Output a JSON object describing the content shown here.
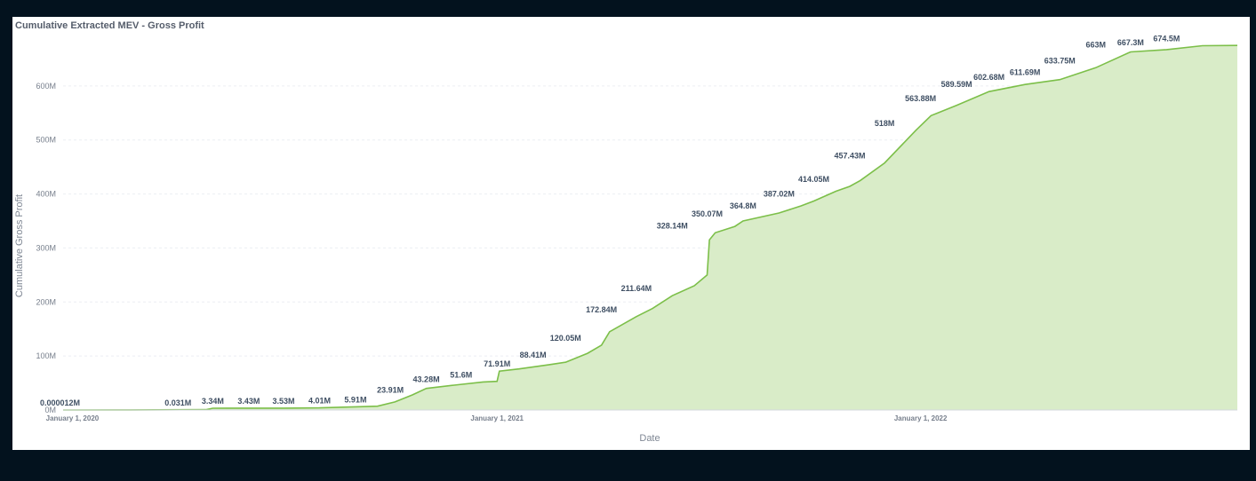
{
  "chart_data": {
    "type": "area",
    "title": "Cumulative Extracted MEV - Gross Profit",
    "xlabel": "Date",
    "ylabel": "Cumulative Gross Profit",
    "ylim": [
      0,
      700
    ],
    "yticks": [
      {
        "value": 0,
        "label": "0M"
      },
      {
        "value": 100,
        "label": "100M"
      },
      {
        "value": 200,
        "label": "200M"
      },
      {
        "value": 300,
        "label": "300M"
      },
      {
        "value": 400,
        "label": "400M"
      },
      {
        "value": 500,
        "label": "500M"
      },
      {
        "value": 600,
        "label": "600M"
      }
    ],
    "xticks": [
      {
        "date": "2020-01-01",
        "label": "January 1, 2020"
      },
      {
        "date": "2021-01-01",
        "label": "January 1, 2021"
      },
      {
        "date": "2022-01-01",
        "label": "January 1, 2022"
      }
    ],
    "xlim": [
      "2019-12-24",
      "2022-10-01"
    ],
    "grid": true,
    "colors": {
      "line": "#7cbf49",
      "fill": "#d9ecc8"
    },
    "series": [
      {
        "points": [
          [
            "2019-12-24",
            0
          ],
          [
            "2020-02-20",
            0.1
          ],
          [
            "2020-04-25",
            0.6
          ],
          [
            "2020-05-01",
            3.34
          ],
          [
            "2020-06-01",
            3.43
          ],
          [
            "2020-07-01",
            3.53
          ],
          [
            "2020-08-01",
            4.01
          ],
          [
            "2020-09-01",
            5.91
          ],
          [
            "2020-09-20",
            7
          ],
          [
            "2020-10-05",
            15
          ],
          [
            "2020-10-20",
            28
          ],
          [
            "2020-11-01",
            40
          ],
          [
            "2020-11-25",
            46
          ],
          [
            "2020-12-20",
            52
          ],
          [
            "2021-01-01",
            53
          ],
          [
            "2021-01-03",
            71.91
          ],
          [
            "2021-01-20",
            76
          ],
          [
            "2021-02-15",
            84
          ],
          [
            "2021-03-01",
            88.41
          ],
          [
            "2021-03-20",
            105
          ],
          [
            "2021-04-01",
            120.05
          ],
          [
            "2021-04-08",
            145
          ],
          [
            "2021-05-01",
            172.84
          ],
          [
            "2021-05-15",
            188
          ],
          [
            "2021-06-01",
            211.64
          ],
          [
            "2021-06-20",
            230
          ],
          [
            "2021-07-01",
            250
          ],
          [
            "2021-07-03",
            315
          ],
          [
            "2021-07-08",
            328.14
          ],
          [
            "2021-07-25",
            340
          ],
          [
            "2021-08-01",
            350.07
          ],
          [
            "2021-09-01",
            364.8
          ],
          [
            "2021-09-20",
            378
          ],
          [
            "2021-10-01",
            387.02
          ],
          [
            "2021-10-20",
            405
          ],
          [
            "2021-11-01",
            414.05
          ],
          [
            "2021-11-10",
            425
          ],
          [
            "2021-12-01",
            457.43
          ],
          [
            "2021-12-20",
            500
          ],
          [
            "2021-12-28",
            518
          ],
          [
            "2022-01-10",
            545
          ],
          [
            "2022-02-01",
            563.88
          ],
          [
            "2022-03-01",
            589.59
          ],
          [
            "2022-04-01",
            602.68
          ],
          [
            "2022-05-01",
            611.69
          ],
          [
            "2022-06-01",
            633.75
          ],
          [
            "2022-07-01",
            663
          ],
          [
            "2022-08-01",
            667.3
          ],
          [
            "2022-09-01",
            674.5
          ],
          [
            "2022-10-01",
            675
          ]
        ],
        "labels": [
          {
            "date": "2020-01-01",
            "value": 1.2e-05,
            "text": "0.000012M"
          },
          {
            "date": "2020-04-01",
            "value": 0.031,
            "text": "0.031M"
          },
          {
            "date": "2020-05-01",
            "value": 3.34,
            "text": "3.34M"
          },
          {
            "date": "2020-06-01",
            "value": 3.43,
            "text": "3.43M"
          },
          {
            "date": "2020-07-01",
            "value": 3.53,
            "text": "3.53M"
          },
          {
            "date": "2020-08-01",
            "value": 4.01,
            "text": "4.01M"
          },
          {
            "date": "2020-09-01",
            "value": 5.91,
            "text": "5.91M"
          },
          {
            "date": "2020-10-01",
            "value": 23.91,
            "text": "23.91M"
          },
          {
            "date": "2020-11-01",
            "value": 43.28,
            "text": "43.28M"
          },
          {
            "date": "2020-12-01",
            "value": 51.6,
            "text": "51.6M"
          },
          {
            "date": "2021-01-01",
            "value": 71.91,
            "text": "71.91M"
          },
          {
            "date": "2021-02-01",
            "value": 88.41,
            "text": "88.41M"
          },
          {
            "date": "2021-03-01",
            "value": 120.05,
            "text": "120.05M"
          },
          {
            "date": "2021-04-01",
            "value": 172.84,
            "text": "172.84M"
          },
          {
            "date": "2021-05-01",
            "value": 211.64,
            "text": "211.64M"
          },
          {
            "date": "2021-06-01",
            "value": 328.14,
            "text": "328.14M"
          },
          {
            "date": "2021-07-01",
            "value": 350.07,
            "text": "350.07M"
          },
          {
            "date": "2021-08-01",
            "value": 364.8,
            "text": "364.8M"
          },
          {
            "date": "2021-09-01",
            "value": 387.02,
            "text": "387.02M"
          },
          {
            "date": "2021-10-01",
            "value": 414.05,
            "text": "414.05M"
          },
          {
            "date": "2021-11-01",
            "value": 457.43,
            "text": "457.43M"
          },
          {
            "date": "2021-12-01",
            "value": 518,
            "text": "518M"
          },
          {
            "date": "2022-01-01",
            "value": 563.88,
            "text": "563.88M"
          },
          {
            "date": "2022-02-01",
            "value": 589.59,
            "text": "589.59M"
          },
          {
            "date": "2022-03-01",
            "value": 602.68,
            "text": "602.68M"
          },
          {
            "date": "2022-04-01",
            "value": 611.69,
            "text": "611.69M"
          },
          {
            "date": "2022-05-01",
            "value": 633.75,
            "text": "633.75M"
          },
          {
            "date": "2022-06-01",
            "value": 663,
            "text": "663M"
          },
          {
            "date": "2022-07-01",
            "value": 667.3,
            "text": "667.3M"
          },
          {
            "date": "2022-08-01",
            "value": 674.5,
            "text": "674.5M"
          }
        ]
      }
    ]
  }
}
